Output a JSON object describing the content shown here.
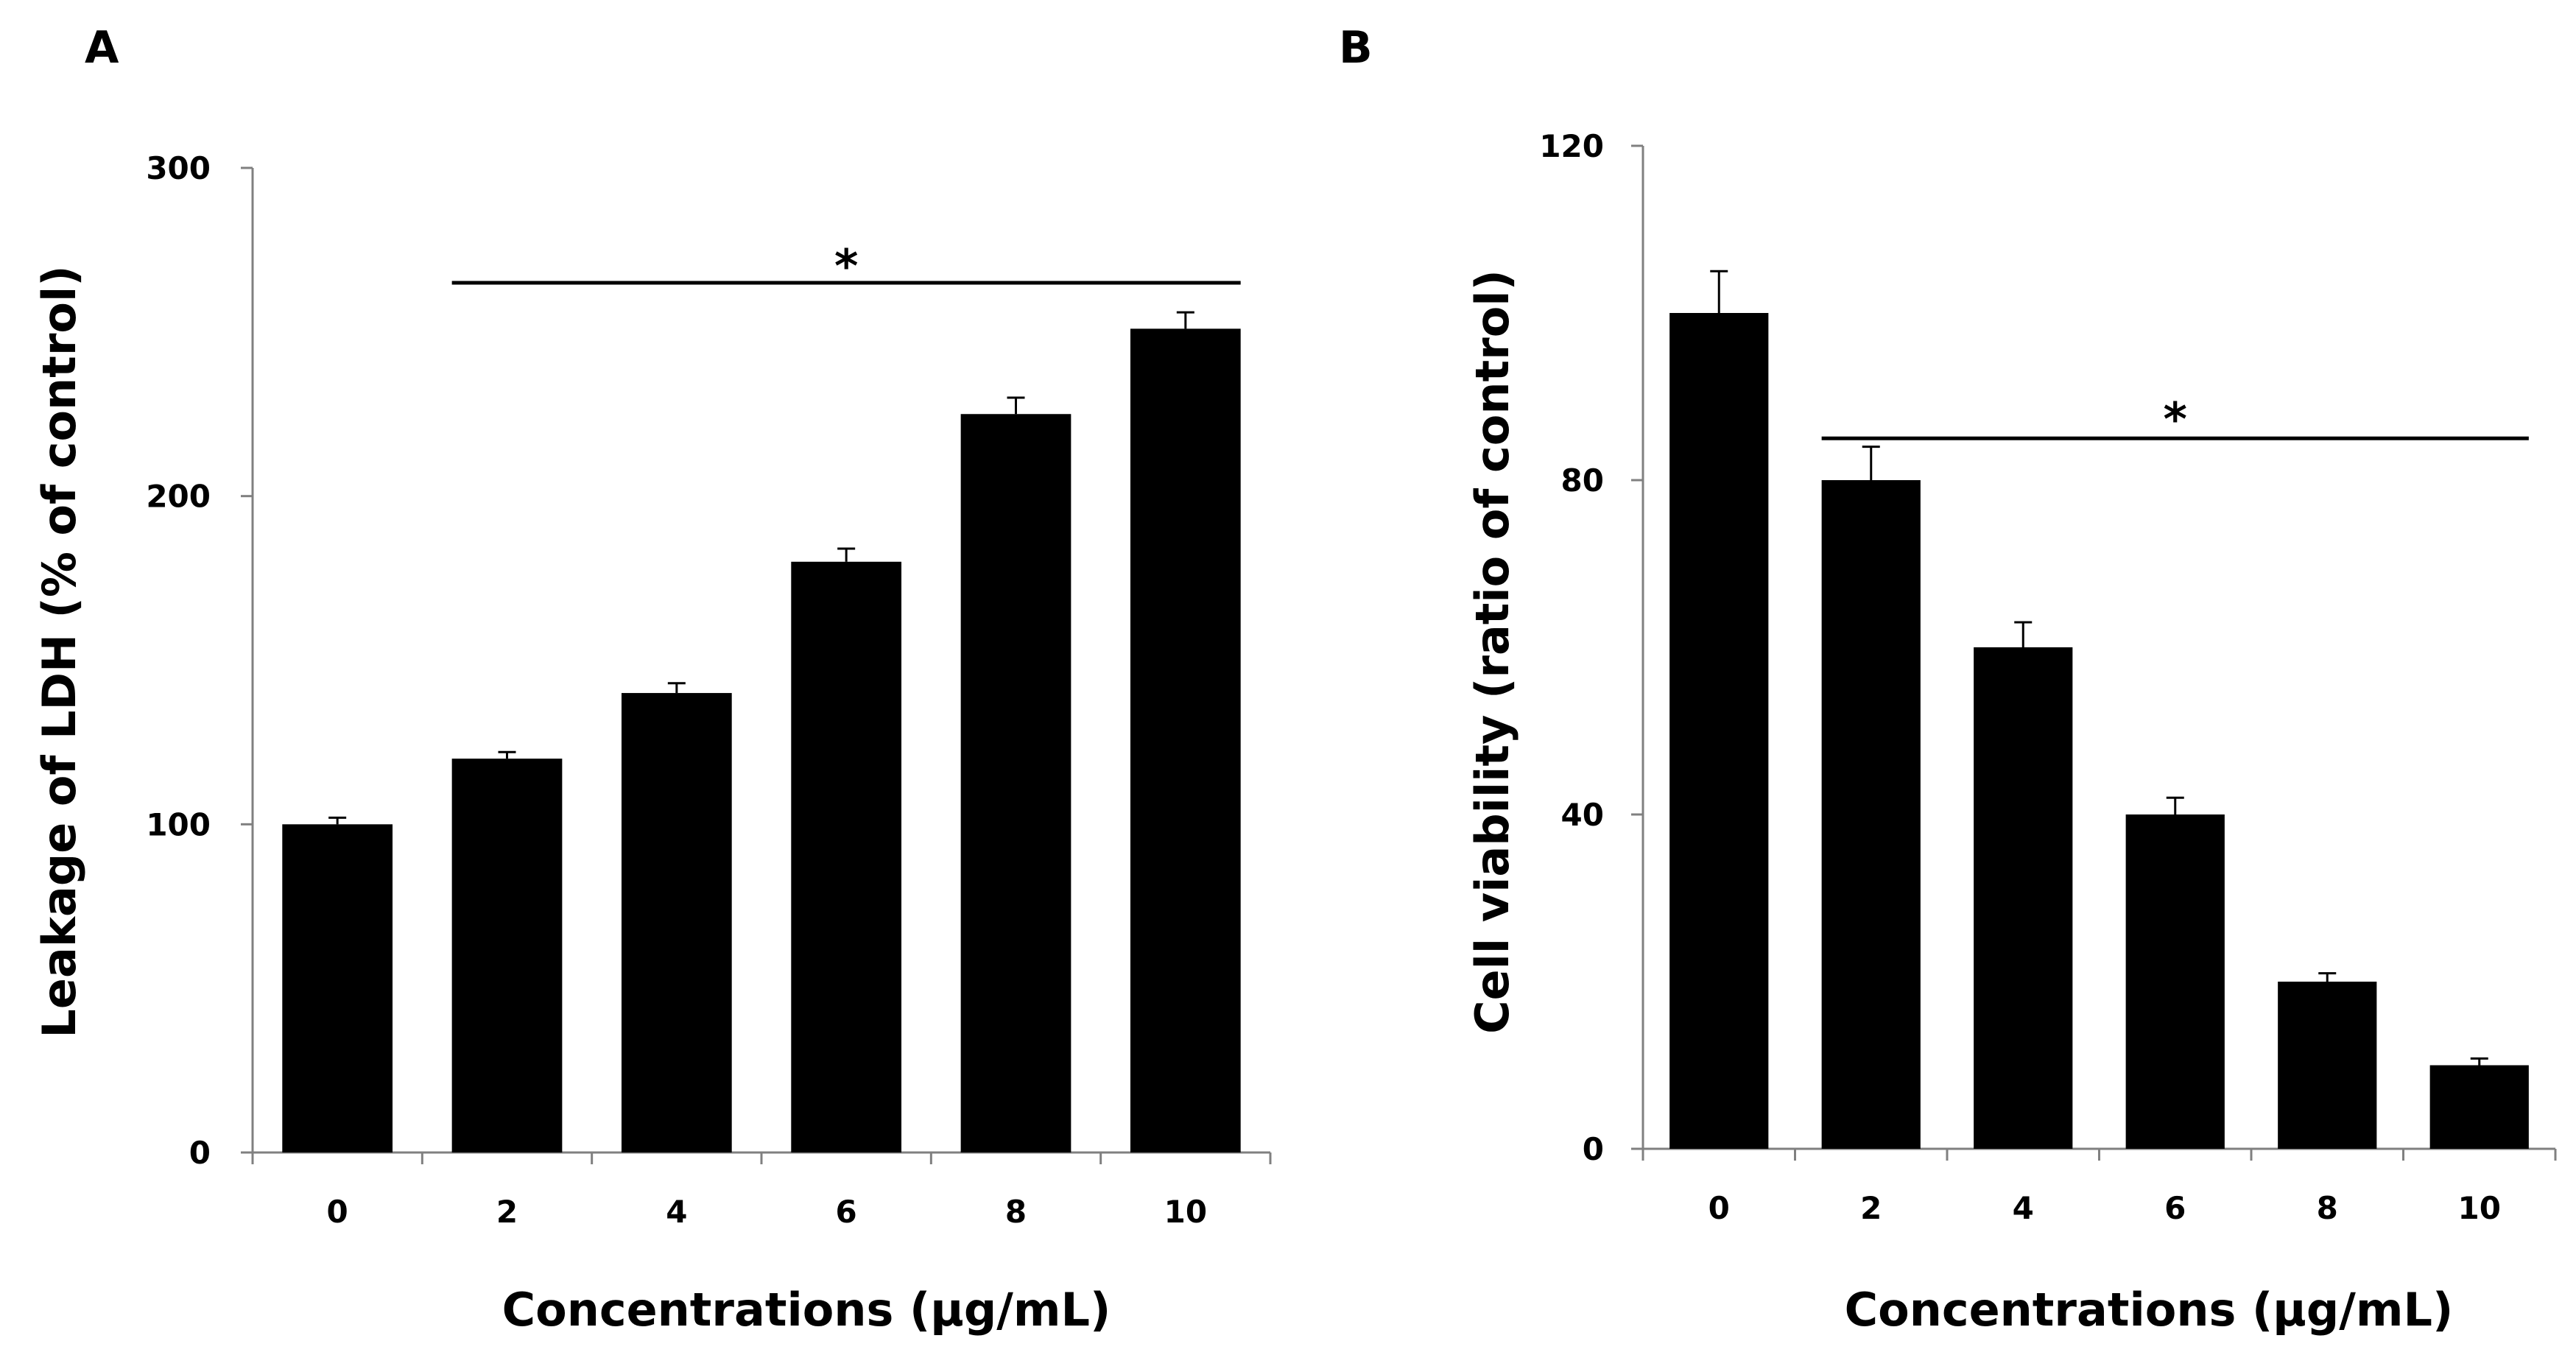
{
  "chart_data": [
    {
      "panel": "A",
      "type": "bar",
      "categories": [
        "0",
        "2",
        "4",
        "6",
        "8",
        "10"
      ],
      "values": [
        100,
        120,
        140,
        180,
        225,
        251
      ],
      "errors": [
        2,
        2,
        3,
        4,
        5,
        5
      ],
      "xlabel": "Concentrations (μg/mL)",
      "ylabel": "Leakage of LDH (% of control)",
      "ylim": [
        0,
        300
      ],
      "yticks": [
        "0",
        "100",
        "200",
        "300"
      ],
      "grid": false,
      "significance": {
        "symbol": "*",
        "from_category": "2",
        "to_category": "10",
        "level": 265,
        "symbol_level": 272
      }
    },
    {
      "panel": "B",
      "type": "bar",
      "categories": [
        "0",
        "2",
        "4",
        "6",
        "8",
        "10"
      ],
      "values": [
        100,
        80,
        60,
        40,
        20,
        10
      ],
      "errors": [
        5,
        4,
        3,
        2,
        1,
        0.8
      ],
      "xlabel": "Concentrations (μg/mL)",
      "ylabel": "Cell viability (ratio of control)",
      "ylim": [
        0,
        120
      ],
      "yticks": [
        "0",
        "40",
        "80",
        "120"
      ],
      "grid": false,
      "significance": {
        "symbol": "*",
        "from_category": "2",
        "to_category": "10",
        "level": 85,
        "symbol_level": 88
      }
    }
  ],
  "colors": {
    "bar": "#000000",
    "axis": "#808080",
    "text": "#000000"
  }
}
